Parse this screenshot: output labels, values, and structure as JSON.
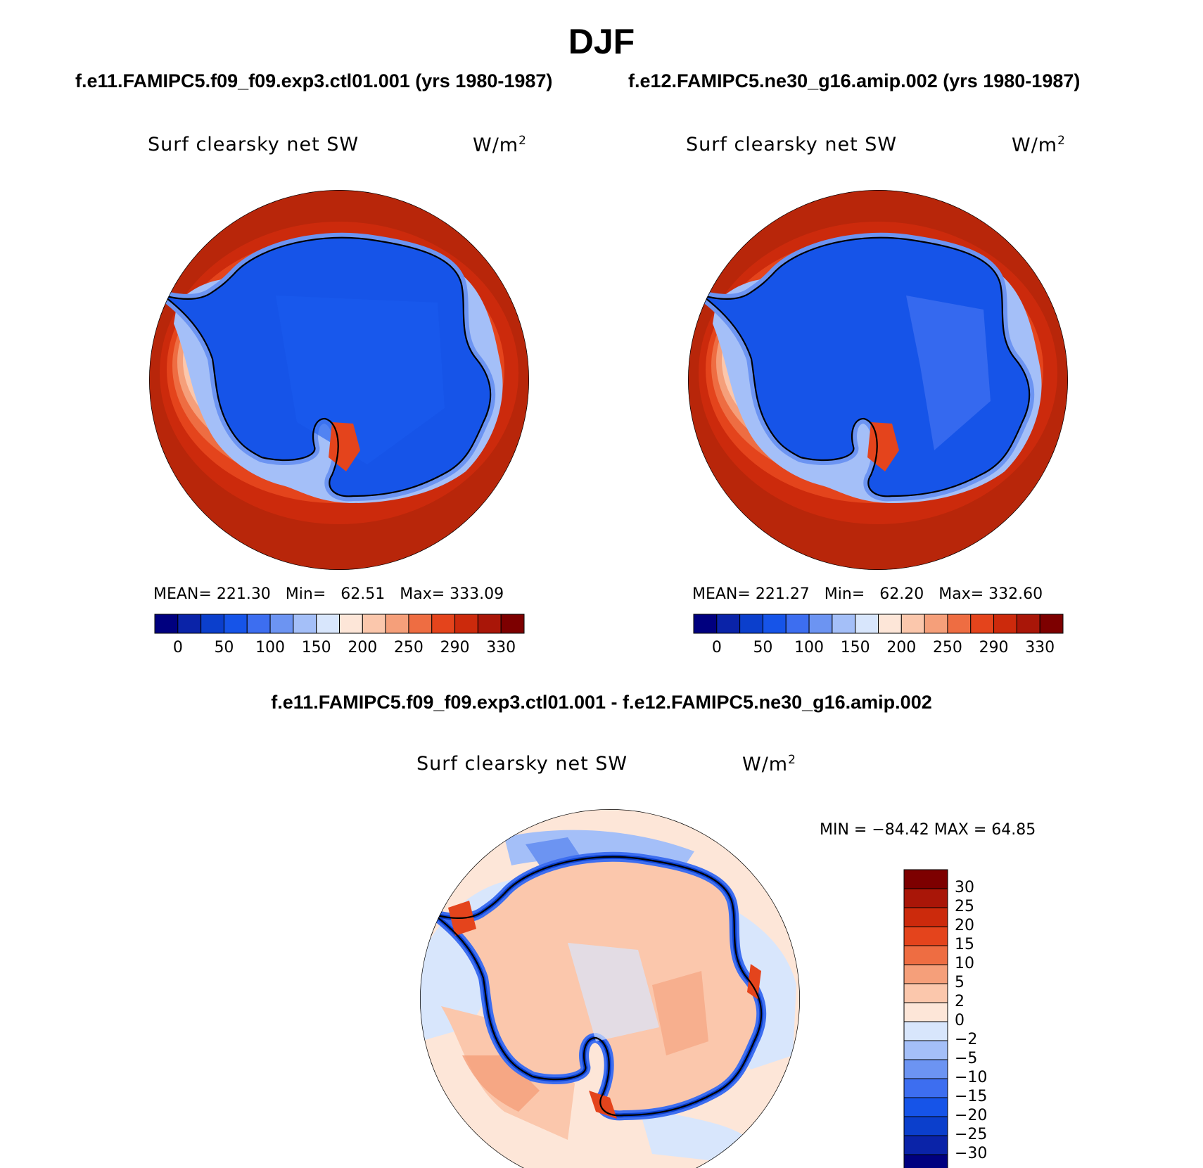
{
  "title": "DJF",
  "panels": [
    {
      "case_title": "f.e11.FAMIPC5.f09_f09.exp3.ctl01.001 (yrs 1980-1987)",
      "variable": "Surf clearsky net SW",
      "units_base": "W/m",
      "units_exp": "2",
      "stats": {
        "mean": "221.30",
        "min": "62.51",
        "max": "333.09"
      }
    },
    {
      "case_title": "f.e12.FAMIPC5.ne30_g16.amip.002 (yrs 1980-1987)",
      "variable": "Surf clearsky net SW",
      "units_base": "W/m",
      "units_exp": "2",
      "stats": {
        "mean": "221.27",
        "min": "62.20",
        "max": "332.60"
      }
    }
  ],
  "stat_labels": {
    "mean": "MEAN=",
    "min": "Min=",
    "max": "Max="
  },
  "top_colorbar": {
    "colors": [
      "#00007f",
      "#0a23a8",
      "#0b3fcc",
      "#1654e8",
      "#3d6ef0",
      "#6c94f2",
      "#a4bff8",
      "#d8e6fc",
      "#fde6d8",
      "#fbc7ac",
      "#f59f7a",
      "#ee6d42",
      "#e4441c",
      "#cc2a0c",
      "#a91608",
      "#7d0000"
    ],
    "labels": [
      "0",
      "50",
      "100",
      "150",
      "200",
      "250",
      "290",
      "330"
    ]
  },
  "difference": {
    "title": "f.e11.FAMIPC5.f09_f09.exp3.ctl01.001 - f.e12.FAMIPC5.ne30_g16.amip.002",
    "variable": "Surf clearsky net SW",
    "units_base": "W/m",
    "units_exp": "2",
    "minmax_text": "MIN = −84.42  MAX =  64.85",
    "colorbar": {
      "colors_top_to_bottom": [
        "#7d0000",
        "#a91608",
        "#cc2a0c",
        "#e4441c",
        "#ee6d42",
        "#f59f7a",
        "#fbc7ac",
        "#fde6d8",
        "#d8e6fc",
        "#a4bff8",
        "#6c94f2",
        "#3d6ef0",
        "#1654e8",
        "#0b3fcc",
        "#0a23a8",
        "#00007f"
      ],
      "labels": [
        "30",
        "25",
        "20",
        "15",
        "10",
        "5",
        "2",
        "0",
        "−2",
        "−5",
        "−10",
        "−15",
        "−20",
        "−25",
        "−30"
      ]
    }
  },
  "chart_data": {
    "type": "heatmap",
    "title": "DJF",
    "region": "Antarctica polar stereographic",
    "variable": "Surf clearsky net SW",
    "units": "W/m2",
    "panels": [
      {
        "case": "f.e11.FAMIPC5.f09_f09.exp3.ctl01.001",
        "mean": 221.3,
        "min": 62.51,
        "max": 333.09
      },
      {
        "case": "f.e12.FAMIPC5.ne30_g16.amip.002",
        "mean": 221.27,
        "min": 62.2,
        "max": 332.6
      },
      {
        "case": "difference",
        "min": -84.42,
        "max": 64.85
      }
    ]
  }
}
